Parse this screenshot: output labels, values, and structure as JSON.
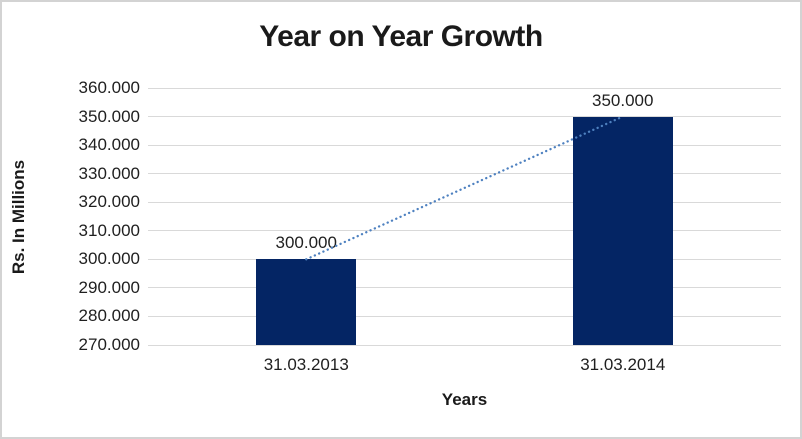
{
  "frame": {
    "background": "#FFFFFF",
    "border_color": "#D3D3D3"
  },
  "chart_data": {
    "type": "bar",
    "title": "Year on Year Growth",
    "categories": [
      "31.03.2013",
      "31.03.2014"
    ],
    "values": [
      300,
      350
    ],
    "data_labels": [
      "300.000",
      "350.000"
    ],
    "xlabel": "Years",
    "ylabel": "Rs. In Millions",
    "ylim": [
      270,
      360
    ],
    "ytick_step": 10,
    "yticks": [
      "360.000",
      "350.000",
      "340.000",
      "330.000",
      "320.000",
      "310.000",
      "300.000",
      "290.000",
      "280.000",
      "270.000"
    ],
    "grid": true,
    "legend": false,
    "trendline": {
      "type": "linear",
      "style": "dotted",
      "from_value": 300,
      "to_value": 350
    },
    "colors": {
      "bar": "#042564",
      "trendline": "#4E81C0",
      "gridline": "#D9D9D9",
      "text": "#1F1F1F"
    }
  }
}
